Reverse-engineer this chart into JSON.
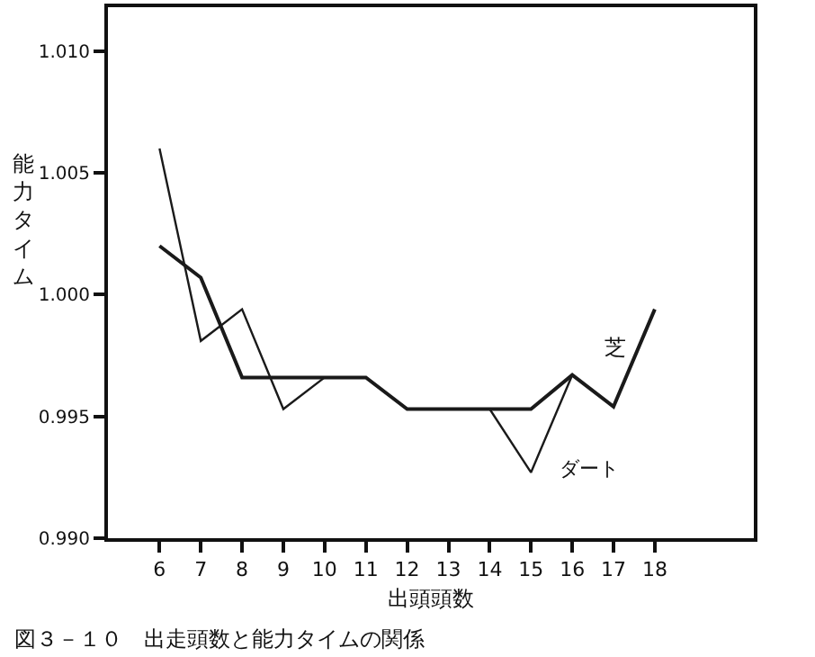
{
  "chart_data": {
    "type": "line",
    "xlabel": "出頭頭数",
    "ylabel": "能力タイム",
    "x": [
      6,
      7,
      8,
      9,
      10,
      11,
      12,
      13,
      14,
      15,
      16,
      17,
      18
    ],
    "series": [
      {
        "name": "芝",
        "color": "#1a1a1a",
        "values": [
          1.002,
          1.0007,
          0.9966,
          0.9966,
          0.9966,
          0.9966,
          0.9953,
          0.9953,
          0.9953,
          0.9953,
          0.9967,
          0.9954,
          0.9994
        ]
      },
      {
        "name": "ダート",
        "color": "#1a1a1a",
        "line_style": "solid",
        "values": [
          1.006,
          0.9981,
          0.9994,
          0.9953,
          0.9966,
          0.9966,
          0.9953,
          0.9953,
          0.9953,
          0.9927,
          0.9967,
          null,
          null
        ]
      }
    ],
    "xlim": [
      4.75,
      20.4
    ],
    "xticks": [
      6,
      7,
      8,
      9,
      10,
      11,
      12,
      13,
      14,
      15,
      16,
      17,
      18
    ],
    "ylim": [
      0.99,
      1.0118
    ],
    "yticks": [
      {
        "value": 0.99,
        "label": "0.990"
      },
      {
        "value": 0.995,
        "label": "0.995"
      },
      {
        "value": 1.0,
        "label": "1.000"
      },
      {
        "value": 1.005,
        "label": "1.005"
      },
      {
        "value": 1.01,
        "label": "1.010"
      }
    ],
    "grid": false,
    "marker": "none",
    "annotations": [
      "図３－１０　出走頭数と能力タイムの関係"
    ]
  }
}
